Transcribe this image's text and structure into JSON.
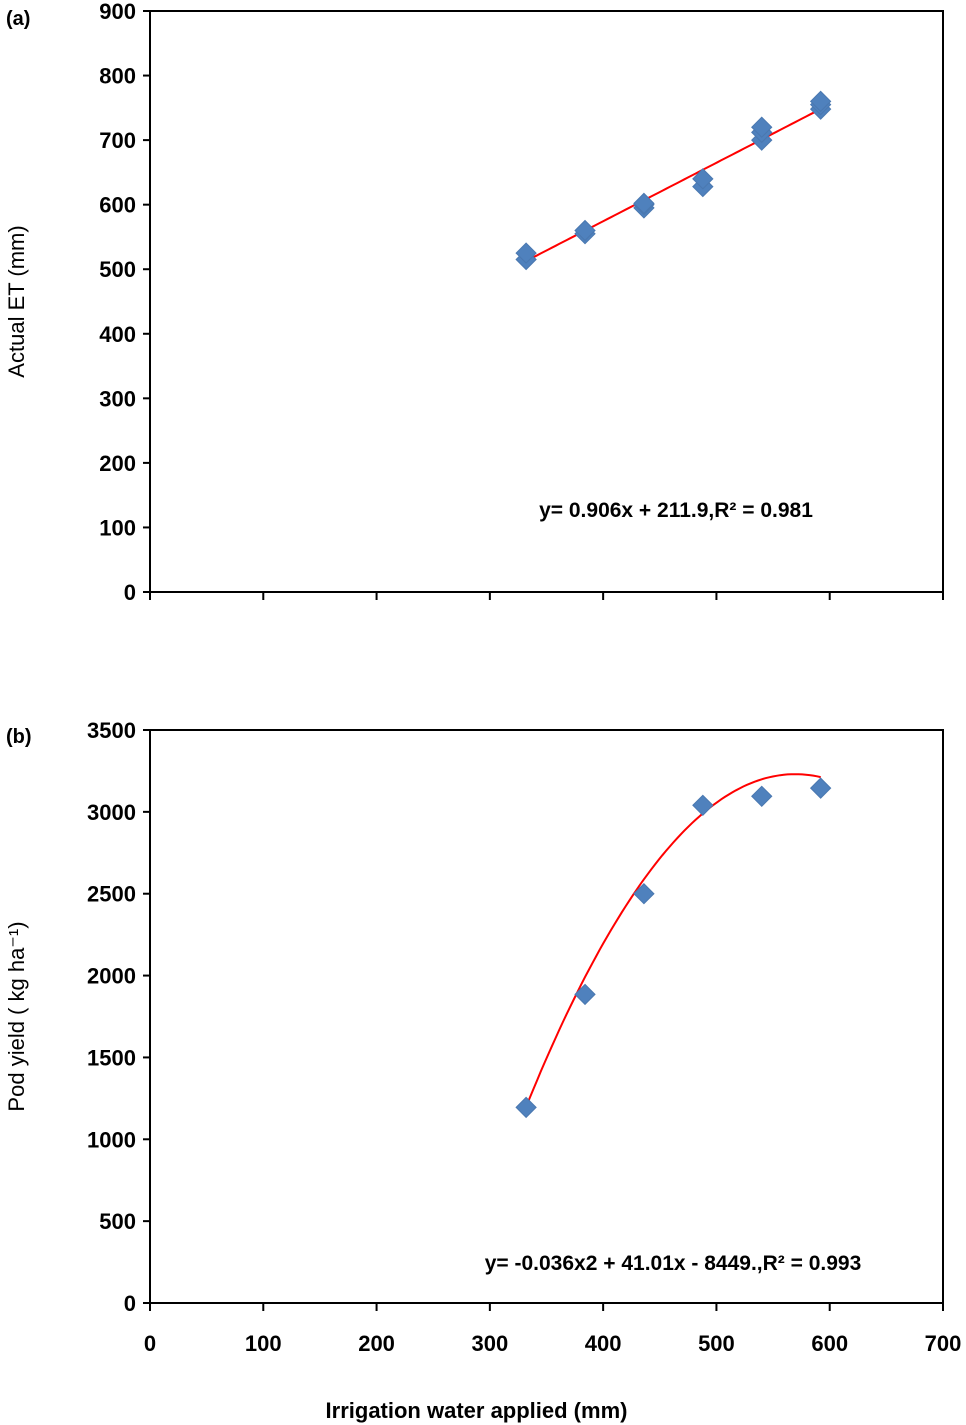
{
  "chart_data": [
    {
      "type": "scatter",
      "panel_label": "(a)",
      "title": "",
      "xlabel": "",
      "ylabel": "Actual ET (mm)",
      "xlim": [
        0,
        700
      ],
      "ylim": [
        0,
        900
      ],
      "yticks": [
        0,
        100,
        200,
        300,
        400,
        500,
        600,
        700,
        800,
        900
      ],
      "xticks": [
        0,
        100,
        200,
        300,
        400,
        500,
        600,
        700
      ],
      "show_x_tick_labels": false,
      "marker_color": "#4F81BD",
      "trend_color": "#FF0000",
      "series": [
        {
          "x": [
            332,
            332,
            384,
            384,
            436,
            436,
            436,
            488,
            488,
            540,
            540,
            540,
            592,
            592,
            592
          ],
          "y": [
            515,
            525,
            555,
            560,
            595,
            600,
            602,
            628,
            640,
            700,
            712,
            720,
            748,
            755,
            760
          ]
        }
      ],
      "trendline": {
        "kind": "linear",
        "slope": 0.906,
        "intercept": 211.9,
        "x_range": [
          332,
          592
        ]
      },
      "equation": "y= 0.906x + 211.9,R² = 0.981"
    },
    {
      "type": "scatter",
      "panel_label": "(b)",
      "title": "",
      "xlabel": "Irrigation water applied (mm)",
      "ylabel": "Pod yield ( kg ha⁻¹)",
      "xlim": [
        0,
        700
      ],
      "ylim": [
        0,
        3500
      ],
      "yticks": [
        0,
        500,
        1000,
        1500,
        2000,
        2500,
        3000,
        3500
      ],
      "xticks": [
        0,
        100,
        200,
        300,
        400,
        500,
        600,
        700
      ],
      "show_x_tick_labels": true,
      "marker_color": "#4F81BD",
      "trend_color": "#FF0000",
      "series": [
        {
          "x": [
            332,
            384,
            436,
            488,
            540,
            592
          ],
          "y": [
            1195,
            1885,
            2500,
            3040,
            3095,
            3145
          ]
        }
      ],
      "trendline": {
        "kind": "quadratic",
        "a": -0.036,
        "b": 41.01,
        "c": -8449,
        "x_range": [
          332,
          592
        ]
      },
      "equation": "y= -0.036x2 + 41.01x - 8449.,R² = 0.993"
    }
  ]
}
